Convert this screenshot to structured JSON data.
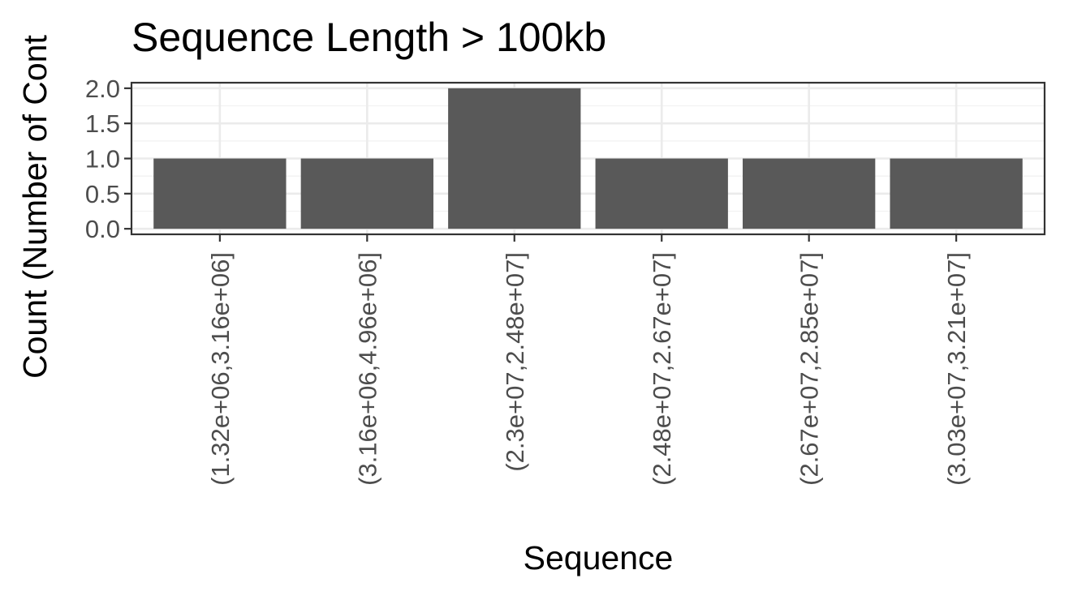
{
  "chart_data": {
    "type": "bar",
    "title": "Sequence Length > 100kb",
    "xlabel": "Sequence",
    "ylabel": "Count (Number of Cont",
    "categories": [
      "(1.32e+06,3.16e+06]",
      "(3.16e+06,4.96e+06]",
      "(2.3e+07,2.48e+07]",
      "(2.48e+07,2.67e+07]",
      "(2.67e+07,2.85e+07]",
      "(3.03e+07,3.21e+07]"
    ],
    "values": [
      1,
      1,
      2,
      1,
      1,
      1
    ],
    "ylim": [
      0,
      2
    ],
    "yticks": [
      0.0,
      0.5,
      1.0,
      1.5,
      2.0
    ],
    "ytick_labels": [
      "0.0",
      "0.5",
      "1.0",
      "1.5",
      "2.0"
    ],
    "grid": true,
    "legend": "none",
    "colors": {
      "bar": "#595959",
      "grid_major": "#ebebeb",
      "grid_minor": "#f2f2f2",
      "panel_border": "#333333",
      "axis_text": "#4d4d4d",
      "title_text": "#000000"
    }
  }
}
